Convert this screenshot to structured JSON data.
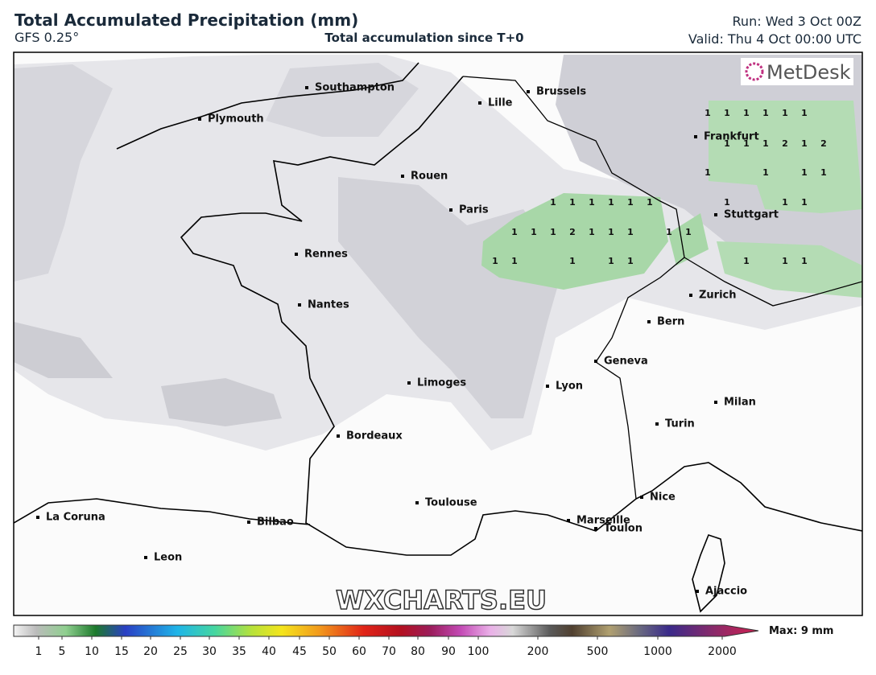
{
  "header": {
    "title": "Total Accumulated Precipitation (mm)",
    "model": "GFS 0.25°",
    "subtitle": "Total accumulation since T+0",
    "run": "Run: Wed 3 Oct 00Z",
    "valid": "Valid: Thu 4 Oct 00:00 UTC"
  },
  "logo": "MetDesk",
  "watermark": "WXCHARTS.EU",
  "cities": [
    {
      "name": "Southampton"
    },
    {
      "name": "Plymouth"
    },
    {
      "name": "Lille"
    },
    {
      "name": "Brussels"
    },
    {
      "name": "Frankfurt"
    },
    {
      "name": "Rouen"
    },
    {
      "name": "Paris"
    },
    {
      "name": "Stuttgart"
    },
    {
      "name": "Rennes"
    },
    {
      "name": "Nantes"
    },
    {
      "name": "Zurich"
    },
    {
      "name": "Bern"
    },
    {
      "name": "Geneva"
    },
    {
      "name": "Limoges"
    },
    {
      "name": "Lyon"
    },
    {
      "name": "Milan"
    },
    {
      "name": "Turin"
    },
    {
      "name": "Bordeaux"
    },
    {
      "name": "Toulouse"
    },
    {
      "name": "Nice"
    },
    {
      "name": "La Coruna"
    },
    {
      "name": "Bilbao"
    },
    {
      "name": "Marseille"
    },
    {
      "name": "Toulon"
    },
    {
      "name": "Leon"
    },
    {
      "name": "Ajaccio"
    }
  ],
  "precip_labels": [
    1,
    1,
    1,
    1,
    1,
    1,
    1,
    1,
    1,
    2,
    1,
    2,
    1,
    1,
    1,
    1,
    1,
    1,
    1,
    1,
    1,
    1,
    1,
    1,
    1,
    1,
    1,
    1,
    2,
    1,
    1,
    1,
    1,
    1,
    1,
    1,
    1,
    1,
    1,
    1,
    1,
    1
  ],
  "colorbar": {
    "ticks": [
      1,
      5,
      10,
      15,
      20,
      25,
      30,
      35,
      40,
      45,
      50,
      60,
      70,
      80,
      90,
      100,
      200,
      500,
      1000,
      2000
    ],
    "max_label": "Max: 9 mm"
  }
}
